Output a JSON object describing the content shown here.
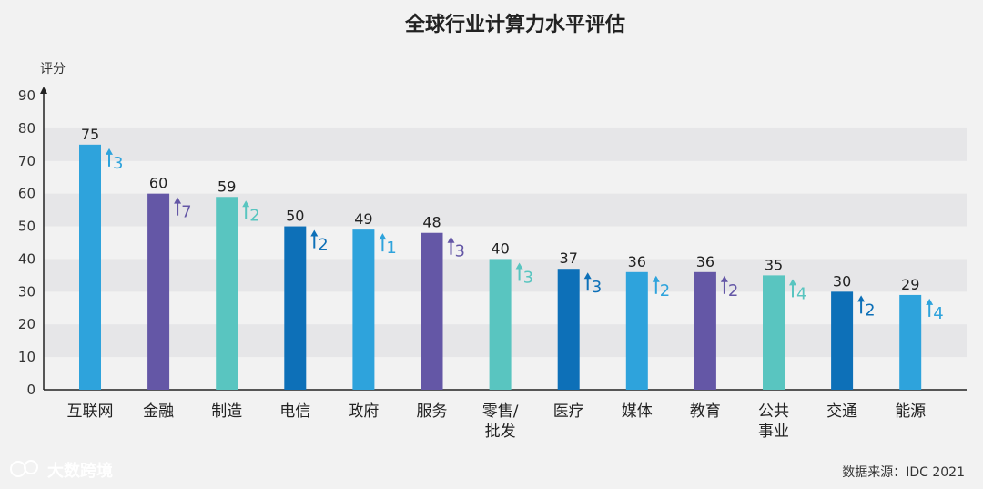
{
  "chart_data": {
    "type": "bar",
    "title": "全球行业计算力水平评估",
    "ylabel": "评分",
    "ylim": [
      0,
      90
    ],
    "yticks": [
      0,
      10,
      20,
      30,
      40,
      50,
      60,
      70,
      80,
      90
    ],
    "grid": "alternating-bands",
    "categories": [
      [
        "互联网"
      ],
      [
        "金融"
      ],
      [
        "制造"
      ],
      [
        "电信"
      ],
      [
        "政府"
      ],
      [
        "服务"
      ],
      [
        "零售/",
        "批发"
      ],
      [
        "医疗"
      ],
      [
        "媒体"
      ],
      [
        "教育"
      ],
      [
        "公共",
        "事业"
      ],
      [
        "交通"
      ],
      [
        "能源"
      ]
    ],
    "values": [
      75,
      60,
      59,
      50,
      49,
      48,
      40,
      37,
      36,
      36,
      35,
      30,
      29
    ],
    "changes": [
      3,
      7,
      2,
      2,
      1,
      3,
      3,
      3,
      2,
      2,
      4,
      2,
      4
    ],
    "colors": [
      "#2ea3dc",
      "#6457a6",
      "#59c5c0",
      "#0d70b8",
      "#2ea3dc",
      "#6457a6",
      "#59c5c0",
      "#0d70b8",
      "#2ea3dc",
      "#6457a6",
      "#59c5c0",
      "#0d70b8",
      "#2ea3dc"
    ]
  },
  "source": "数据来源：IDC 2021",
  "watermark": "大数跨境"
}
